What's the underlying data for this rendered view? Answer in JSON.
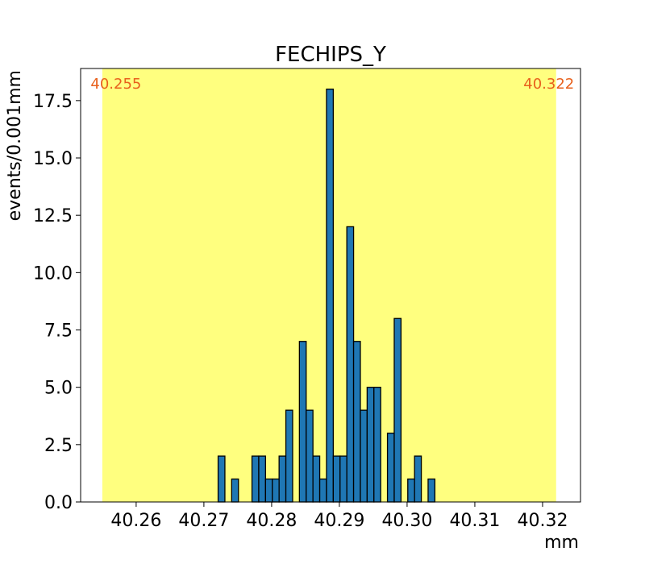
{
  "chart_data": {
    "type": "bar",
    "title": "FECHIPS_Y",
    "xlabel": "mm",
    "ylabel": "events/0.001mm",
    "xlim": [
      40.2518,
      40.3256
    ],
    "ylim": [
      0,
      18.9
    ],
    "xticks": [
      40.26,
      40.27,
      40.28,
      40.29,
      40.3,
      40.31,
      40.32
    ],
    "xtick_labels": [
      "40.26",
      "40.27",
      "40.28",
      "40.29",
      "40.30",
      "40.31",
      "40.32"
    ],
    "yticks": [
      0,
      2.5,
      5,
      7.5,
      10,
      12.5,
      15,
      17.5
    ],
    "ytick_labels": [
      "0.0",
      "2.5",
      "5.0",
      "7.5",
      "10.0",
      "12.5",
      "15.0",
      "17.5"
    ],
    "bin_width": 0.001,
    "bin_start": 40.2721,
    "values": [
      2,
      0,
      1,
      0,
      0,
      2,
      2,
      1,
      1,
      2,
      4,
      0,
      7,
      4,
      2,
      1,
      18,
      2,
      2,
      12,
      7,
      4,
      5,
      5,
      0,
      3,
      8,
      0,
      1,
      2,
      0,
      1
    ],
    "band": {
      "low": 40.255,
      "high": 40.322,
      "low_label": "40.255",
      "high_label": "40.322"
    },
    "colors": {
      "bar": "#1f77b4",
      "edge": "#000000",
      "band": "#ffff7f",
      "band_label": "#e8601c"
    },
    "grid": false,
    "legend": "none"
  }
}
